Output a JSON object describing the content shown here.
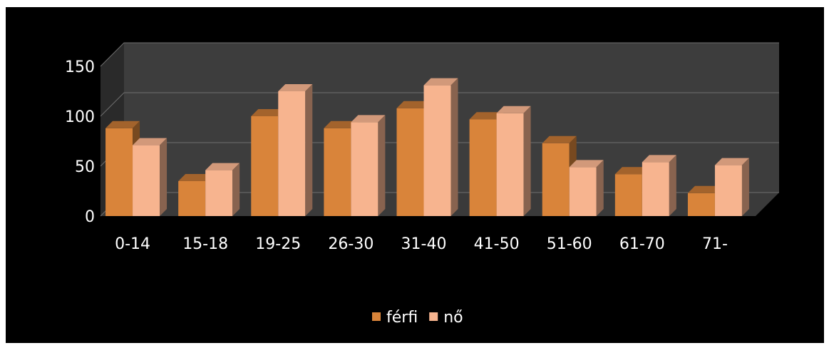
{
  "chart_data": {
    "type": "bar",
    "title": "",
    "xlabel": "",
    "ylabel": "",
    "categories": [
      "0-14",
      "15-18",
      "19-25",
      "26-30",
      "31-40",
      "41-50",
      "51-60",
      "61-70",
      "71-"
    ],
    "series": [
      {
        "name": "férfi",
        "color": "#d9843a",
        "values": [
          88,
          35,
          100,
          88,
          108,
          97,
          73,
          42,
          23
        ]
      },
      {
        "name": "nő",
        "color": "#f7b48f",
        "values": [
          71,
          46,
          125,
          94,
          131,
          103,
          49,
          54,
          51
        ]
      }
    ],
    "ylim": [
      0,
      150
    ],
    "yticks": [
      "0",
      "50",
      "100",
      "150"
    ],
    "grid": true,
    "legend_position": "bottom",
    "style": "3d-clustered-column"
  }
}
